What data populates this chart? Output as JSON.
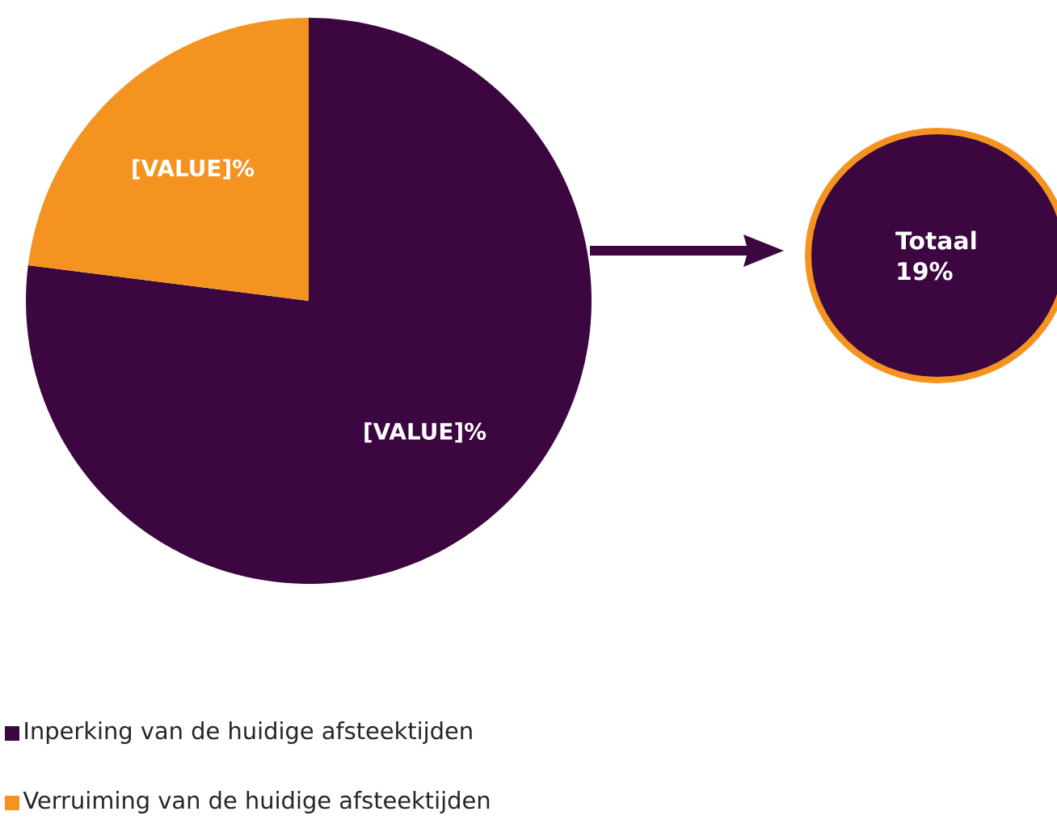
{
  "chart_data": {
    "type": "pie",
    "categories": [
      "Inperking van de huidige afsteektijden",
      "Verruiming van de huidige afsteektijden"
    ],
    "values": [
      77,
      23
    ],
    "colors": [
      "#3c0640",
      "#f59320"
    ],
    "value_labels": [
      "[VALUE]%",
      "[VALUE]%"
    ],
    "legend": "bottom",
    "annotations": [
      "Totaal 19%"
    ]
  }
}
